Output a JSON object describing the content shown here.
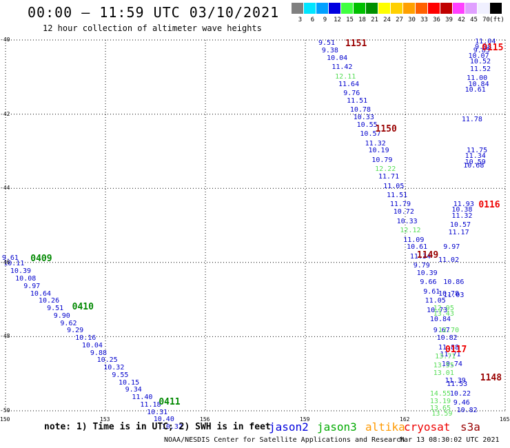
{
  "header": {
    "title": "00:00 – 11:59 UTC 03/10/2021",
    "subtitle": "12 hour collection of altimeter wave heights"
  },
  "scale": {
    "unit": "(ft)",
    "bins": [
      {
        "label": "3",
        "color": "#808080"
      },
      {
        "label": "6",
        "color": "#00e5ff"
      },
      {
        "label": "9",
        "color": "#00a0ff"
      },
      {
        "label": "12",
        "color": "#0000e0"
      },
      {
        "label": "15",
        "color": "#40ff40"
      },
      {
        "label": "18",
        "color": "#00c000"
      },
      {
        "label": "21",
        "color": "#009000"
      },
      {
        "label": "24",
        "color": "#ffff00"
      },
      {
        "label": "27",
        "color": "#ffd000"
      },
      {
        "label": "30",
        "color": "#ffa000"
      },
      {
        "label": "33",
        "color": "#ff6000"
      },
      {
        "label": "36",
        "color": "#ff0000"
      },
      {
        "label": "39",
        "color": "#c00000"
      },
      {
        "label": "42",
        "color": "#ff40ff"
      },
      {
        "label": "45",
        "color": "#e0a0ff"
      },
      {
        "label": "70",
        "color": "#f0f0ff"
      },
      {
        "label": "",
        "color": "#000000"
      }
    ]
  },
  "map": {
    "lat_labels": [
      {
        "label": "-40",
        "lat": -40
      },
      {
        "label": "-42",
        "lat": -42
      },
      {
        "label": "-44",
        "lat": -44
      },
      {
        "label": "-46",
        "lat": -46
      },
      {
        "label": "-48",
        "lat": -48
      },
      {
        "label": "-50",
        "lat": -50
      }
    ],
    "lon_labels": [
      {
        "label": "150",
        "lon": 150
      },
      {
        "label": "153",
        "lon": 153
      },
      {
        "label": "156",
        "lon": 156
      },
      {
        "label": "159",
        "lon": 159
      },
      {
        "label": "162",
        "lon": 162
      },
      {
        "label": "165",
        "lon": 165
      }
    ],
    "lat_range": [
      -50,
      -40
    ],
    "lon_range": [
      150,
      165
    ]
  },
  "passes": [
    {
      "label": "0409",
      "lon": 150.75,
      "lat": -45.9,
      "color": "#008800"
    },
    {
      "label": "0410",
      "lon": 152.0,
      "lat": -47.2,
      "color": "#008800"
    },
    {
      "label": "0411",
      "lon": 154.6,
      "lat": -49.75,
      "color": "#008800"
    },
    {
      "label": "1151",
      "lon": 160.2,
      "lat": -40.1,
      "color": "#990000"
    },
    {
      "label": "1150",
      "lon": 161.1,
      "lat": -42.4,
      "color": "#990000"
    },
    {
      "label": "1149",
      "lon": 162.35,
      "lat": -45.8,
      "color": "#990000"
    },
    {
      "label": "1148",
      "lon": 164.25,
      "lat": -49.1,
      "color": "#990000"
    },
    {
      "label": "0115",
      "lon": 164.3,
      "lat": -40.2,
      "color": "#ee0000"
    },
    {
      "label": "0116",
      "lon": 164.2,
      "lat": -44.45,
      "color": "#ee0000"
    },
    {
      "label": "0117",
      "lon": 163.2,
      "lat": -48.35,
      "color": "#ee0000"
    }
  ],
  "tracks": [
    {
      "color": "#0000cc",
      "points": [
        {
          "label": "9.61",
          "lon": 150.1,
          "lat": -45.9
        },
        {
          "label": "10.11",
          "lon": 150.15,
          "lat": -46.05
        },
        {
          "label": "10.39",
          "lon": 150.35,
          "lat": -46.25
        },
        {
          "label": "10.08",
          "lon": 150.5,
          "lat": -46.45
        },
        {
          "label": "9.97",
          "lon": 150.75,
          "lat": -46.65
        },
        {
          "label": "10.64",
          "lon": 150.95,
          "lat": -46.85
        },
        {
          "label": "10.26",
          "lon": 151.2,
          "lat": -47.05
        },
        {
          "label": "9.51",
          "lon": 151.45,
          "lat": -47.25
        },
        {
          "label": "9.90",
          "lon": 151.65,
          "lat": -47.45
        },
        {
          "label": "9.62",
          "lon": 151.85,
          "lat": -47.65
        },
        {
          "label": "9.29",
          "lon": 152.05,
          "lat": -47.85
        },
        {
          "label": "10.16",
          "lon": 152.3,
          "lat": -48.05
        },
        {
          "label": "10.04",
          "lon": 152.5,
          "lat": -48.25
        },
        {
          "label": "9.88",
          "lon": 152.75,
          "lat": -48.45
        },
        {
          "label": "10.25",
          "lon": 152.95,
          "lat": -48.65
        },
        {
          "label": "10.32",
          "lon": 153.15,
          "lat": -48.85
        },
        {
          "label": "9.55",
          "lon": 153.4,
          "lat": -49.05
        },
        {
          "label": "10.15",
          "lon": 153.6,
          "lat": -49.25
        },
        {
          "label": "9.34",
          "lon": 153.8,
          "lat": -49.45
        },
        {
          "label": "11.40",
          "lon": 154.0,
          "lat": -49.65
        },
        {
          "label": "11.18",
          "lon": 154.25,
          "lat": -49.85
        },
        {
          "label": "10.31",
          "lon": 154.45,
          "lat": -50.05
        },
        {
          "label": "10.40",
          "lon": 154.65,
          "lat": -50.25
        },
        {
          "label": "10.32",
          "lon": 154.9,
          "lat": -50.45
        }
      ]
    },
    {
      "color": "#0000cc",
      "points": [
        {
          "label": "9.51",
          "lon": 159.6,
          "lat": -40.1
        },
        {
          "label": "9.38",
          "lon": 159.7,
          "lat": -40.3
        },
        {
          "label": "10.04",
          "lon": 159.85,
          "lat": -40.5
        },
        {
          "label": "11.42",
          "lon": 160.0,
          "lat": -40.75
        },
        {
          "label": "12.11",
          "lon": 160.1,
          "lat": -41.0,
          "color": "#55dd55"
        },
        {
          "label": "11.64",
          "lon": 160.2,
          "lat": -41.2
        },
        {
          "label": "9.76",
          "lon": 160.35,
          "lat": -41.45
        },
        {
          "label": "11.51",
          "lon": 160.45,
          "lat": -41.65
        },
        {
          "label": "10.78",
          "lon": 160.55,
          "lat": -41.9
        },
        {
          "label": "10.33",
          "lon": 160.65,
          "lat": -42.1
        },
        {
          "label": "10.55",
          "lon": 160.75,
          "lat": -42.3
        },
        {
          "label": "10.57",
          "lon": 160.85,
          "lat": -42.55
        },
        {
          "label": "11.32",
          "lon": 161.0,
          "lat": -42.8
        },
        {
          "label": "10.19",
          "lon": 161.1,
          "lat": -43.0
        },
        {
          "label": "10.79",
          "lon": 161.2,
          "lat": -43.25
        },
        {
          "label": "12.22",
          "lon": 161.3,
          "lat": -43.5,
          "color": "#55dd55"
        },
        {
          "label": "11.71",
          "lon": 161.4,
          "lat": -43.7
        },
        {
          "label": "11.05",
          "lon": 161.55,
          "lat": -43.95
        },
        {
          "label": "11.51",
          "lon": 161.65,
          "lat": -44.2
        },
        {
          "label": "11.79",
          "lon": 161.75,
          "lat": -44.45
        },
        {
          "label": "10.72",
          "lon": 161.85,
          "lat": -44.65
        },
        {
          "label": "10.33",
          "lon": 161.95,
          "lat": -44.9
        },
        {
          "label": "12.12",
          "lon": 162.05,
          "lat": -45.15,
          "color": "#55dd55"
        },
        {
          "label": "11.09",
          "lon": 162.15,
          "lat": -45.4
        },
        {
          "label": "10.61",
          "lon": 162.25,
          "lat": -45.6
        },
        {
          "label": "11.34",
          "lon": 162.35,
          "lat": -45.85
        },
        {
          "label": "9.79",
          "lon": 162.45,
          "lat": -46.1
        },
        {
          "label": "10.39",
          "lon": 162.55,
          "lat": -46.3
        },
        {
          "label": "9.66",
          "lon": 162.65,
          "lat": -46.55
        },
        {
          "label": "9.61",
          "lon": 162.75,
          "lat": -46.8
        },
        {
          "label": "11.05",
          "lon": 162.8,
          "lat": -47.05
        },
        {
          "label": "10.73",
          "lon": 162.85,
          "lat": -47.3
        },
        {
          "label": "10.84",
          "lon": 162.95,
          "lat": -47.55
        },
        {
          "label": "9.67",
          "lon": 163.05,
          "lat": -47.85
        },
        {
          "label": "10.82",
          "lon": 163.15,
          "lat": -48.05
        },
        {
          "label": "11.88",
          "lon": 163.2,
          "lat": -48.3
        },
        {
          "label": "11.71",
          "lon": 163.25,
          "lat": -48.5
        },
        {
          "label": "10.74",
          "lon": 163.3,
          "lat": -48.75
        },
        {
          "label": "11.39",
          "lon": 163.4,
          "lat": -49.2
        },
        {
          "label": "11.53",
          "lon": 163.45,
          "lat": -49.3
        },
        {
          "label": "10.22",
          "lon": 163.55,
          "lat": -49.55
        },
        {
          "label": "9.46",
          "lon": 163.65,
          "lat": -49.8
        },
        {
          "label": "10.82",
          "lon": 163.75,
          "lat": -50.0
        }
      ]
    },
    {
      "color": "#55dd55",
      "points": [
        {
          "label": "12.95",
          "lon": 163.05,
          "lat": -47.25
        },
        {
          "label": "13.43",
          "lon": 163.05,
          "lat": -47.4
        },
        {
          "label": "12.70",
          "lon": 163.2,
          "lat": -47.85
        },
        {
          "label": "13.71",
          "lon": 163.1,
          "lat": -48.55
        },
        {
          "label": "13.55",
          "lon": 163.05,
          "lat": -48.8
        },
        {
          "label": "13.01",
          "lon": 163.05,
          "lat": -49.0
        },
        {
          "label": "14.55",
          "lon": 162.95,
          "lat": -49.55
        },
        {
          "label": "13.19",
          "lon": 162.95,
          "lat": -49.75
        },
        {
          "label": "13.65",
          "lon": 162.95,
          "lat": -49.95
        },
        {
          "label": "13.59",
          "lon": 163.0,
          "lat": -50.1
        }
      ]
    },
    {
      "color": "#0000cc",
      "points": [
        {
          "label": "11.04",
          "lon": 164.3,
          "lat": -40.05
        },
        {
          "label": "9.98",
          "lon": 164.3,
          "lat": -40.2
        },
        {
          "label": "9.85",
          "lon": 164.25,
          "lat": -40.3
        },
        {
          "label": "10.07",
          "lon": 164.1,
          "lat": -40.45
        },
        {
          "label": "10.52",
          "lon": 164.15,
          "lat": -40.6
        },
        {
          "label": "11.52",
          "lon": 164.15,
          "lat": -40.8
        },
        {
          "label": "11.00",
          "lon": 164.05,
          "lat": -41.05
        },
        {
          "label": "10.84",
          "lon": 164.1,
          "lat": -41.2
        },
        {
          "label": "10.61",
          "lon": 164.0,
          "lat": -41.35
        },
        {
          "label": "11.78",
          "lon": 163.9,
          "lat": -42.15
        },
        {
          "label": "11.75",
          "lon": 164.05,
          "lat": -43.0
        },
        {
          "label": "11.34",
          "lon": 164.0,
          "lat": -43.15
        },
        {
          "label": "10.59",
          "lon": 164.0,
          "lat": -43.3
        },
        {
          "label": "10.68",
          "lon": 163.95,
          "lat": -43.4
        },
        {
          "label": "11.93",
          "lon": 163.65,
          "lat": -44.45
        },
        {
          "label": "10.38",
          "lon": 163.6,
          "lat": -44.6
        },
        {
          "label": "11.32",
          "lon": 163.6,
          "lat": -44.75
        },
        {
          "label": "10.57",
          "lon": 163.55,
          "lat": -45.0
        },
        {
          "label": "11.17",
          "lon": 163.5,
          "lat": -45.2
        },
        {
          "label": "9.97",
          "lon": 163.35,
          "lat": -45.6
        },
        {
          "label": "11.02",
          "lon": 163.2,
          "lat": -45.95
        },
        {
          "label": "10.86",
          "lon": 163.35,
          "lat": -46.55
        },
        {
          "label": "10.78",
          "lon": 163.2,
          "lat": -46.85
        },
        {
          "label": "11.03",
          "lon": 163.35,
          "lat": -46.9
        }
      ]
    }
  ],
  "note": "note: 1) Time is in UTC; 2) SWH is in feet",
  "legend": [
    {
      "label": "jason2",
      "color": "#0000dd"
    },
    {
      "label": "jason3",
      "color": "#00aa00"
    },
    {
      "label": "altika",
      "color": "#ff9900"
    },
    {
      "label": "cryosat",
      "color": "#ee0000"
    },
    {
      "label": "s3a",
      "color": "#990000"
    }
  ],
  "footer": {
    "credit": "NOAA/NESDIS Center for Satellite Applications and Research",
    "timestamp": "Mar 13 08:30:02 UTC 2021"
  }
}
